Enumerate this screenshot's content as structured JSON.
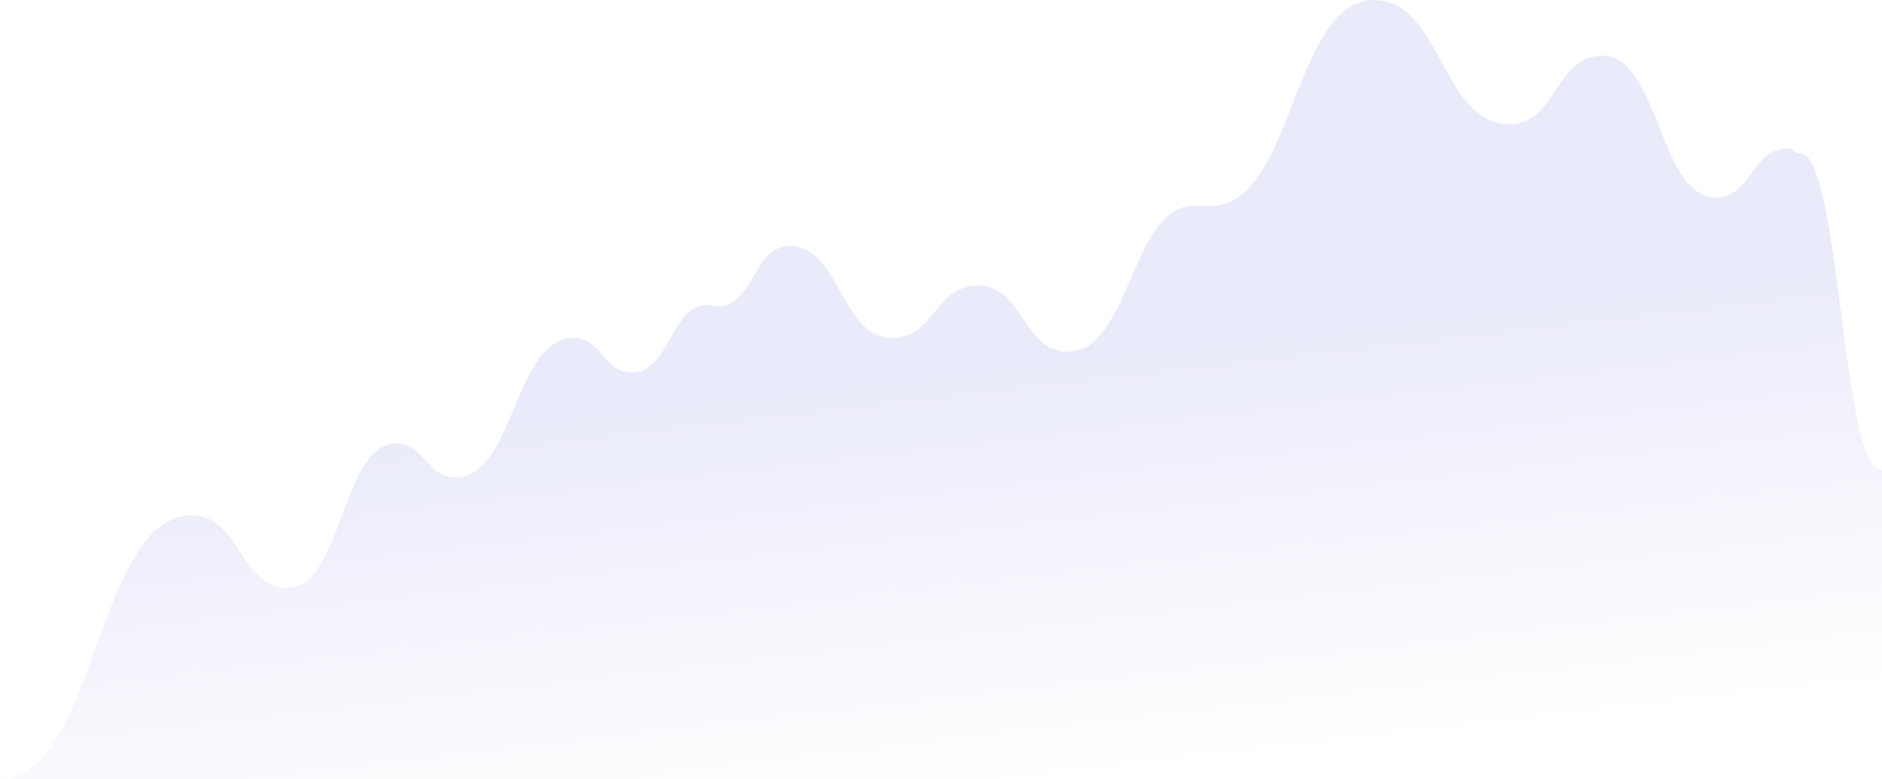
{
  "colors": {
    "fill": "#EAEBFA",
    "fade": "#FFFFFF",
    "background": "#FFFFFF"
  }
}
